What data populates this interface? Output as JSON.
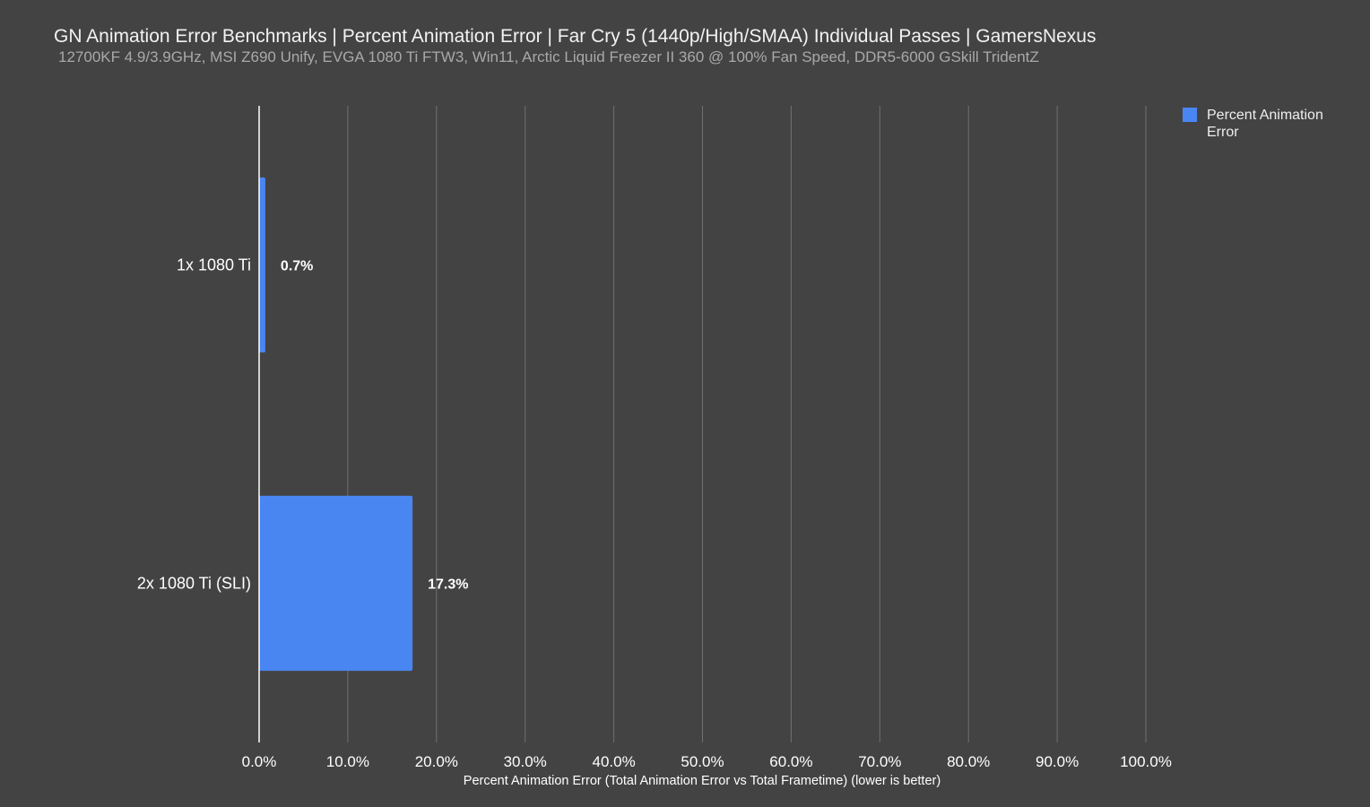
{
  "chart_data": {
    "type": "bar",
    "orientation": "horizontal",
    "title": "GN Animation Error Benchmarks | Percent Animation Error | Far Cry 5 (1440p/High/SMAA) Individual Passes | GamersNexus",
    "subtitle": "12700KF 4.9/3.9GHz, MSI Z690 Unify, EVGA 1080 Ti FTW3, Win11, Arctic Liquid Freezer II 360 @ 100% Fan Speed, DDR5-6000 GSkill TridentZ",
    "xlabel": "Percent Animation Error (Total Animation Error vs Total Frametime) (lower is better)",
    "ylabel": "",
    "categories": [
      "1x 1080 Ti",
      "2x 1080 Ti (SLI)"
    ],
    "series": [
      {
        "name": "Percent Animation Error",
        "values": [
          0.7,
          17.3
        ],
        "data_labels": [
          "0.7%",
          "17.3%"
        ],
        "color": "#4a86f2"
      }
    ],
    "xlim": [
      0,
      100
    ],
    "x_ticks": [
      0,
      10,
      20,
      30,
      40,
      50,
      60,
      70,
      80,
      90,
      100
    ],
    "x_tick_labels": [
      "0.0%",
      "10.0%",
      "20.0%",
      "30.0%",
      "40.0%",
      "50.0%",
      "60.0%",
      "70.0%",
      "80.0%",
      "90.0%",
      "100.0%"
    ],
    "grid": true,
    "legend_position": "top-right"
  },
  "colors": {
    "background": "#434343",
    "bar": "#4a86f2",
    "grid": "#707070",
    "axis": "#ffffff"
  }
}
